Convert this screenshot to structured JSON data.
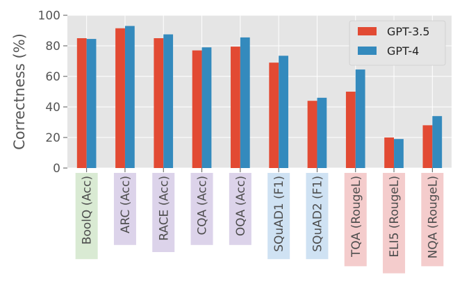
{
  "chart_data": {
    "type": "bar",
    "title": "",
    "xlabel": "",
    "ylabel": "Correctness (%)",
    "ylim": [
      0,
      100
    ],
    "yticks": [
      0,
      20,
      40,
      60,
      80,
      100
    ],
    "grid": true,
    "legend_position": "top-right",
    "categories": [
      "BoolQ (Acc)",
      "ARC (Acc)",
      "RACE (Acc)",
      "CQA (Acc)",
      "OQA (Acc)",
      "SQuAD1 (F1)",
      "SQuAD2 (F1)",
      "TQA (RougeL)",
      "ELI5 (RougeL)",
      "NQA (RougeL)"
    ],
    "category_groups": [
      "green",
      "purple",
      "purple",
      "purple",
      "purple",
      "blue",
      "blue",
      "red",
      "red",
      "red"
    ],
    "group_colors": {
      "green": "#d9ead3",
      "purple": "#dcd3ea",
      "blue": "#cfe2f3",
      "red": "#f4cccc"
    },
    "series": [
      {
        "name": "GPT-3.5",
        "color": "#e24a33",
        "values": [
          85,
          91.5,
          85,
          77,
          79.5,
          69,
          44,
          50,
          20,
          28
        ]
      },
      {
        "name": "GPT-4",
        "color": "#348abd",
        "values": [
          84.5,
          93,
          87.5,
          79,
          85.5,
          73.5,
          46,
          64.5,
          19,
          34
        ]
      }
    ]
  }
}
